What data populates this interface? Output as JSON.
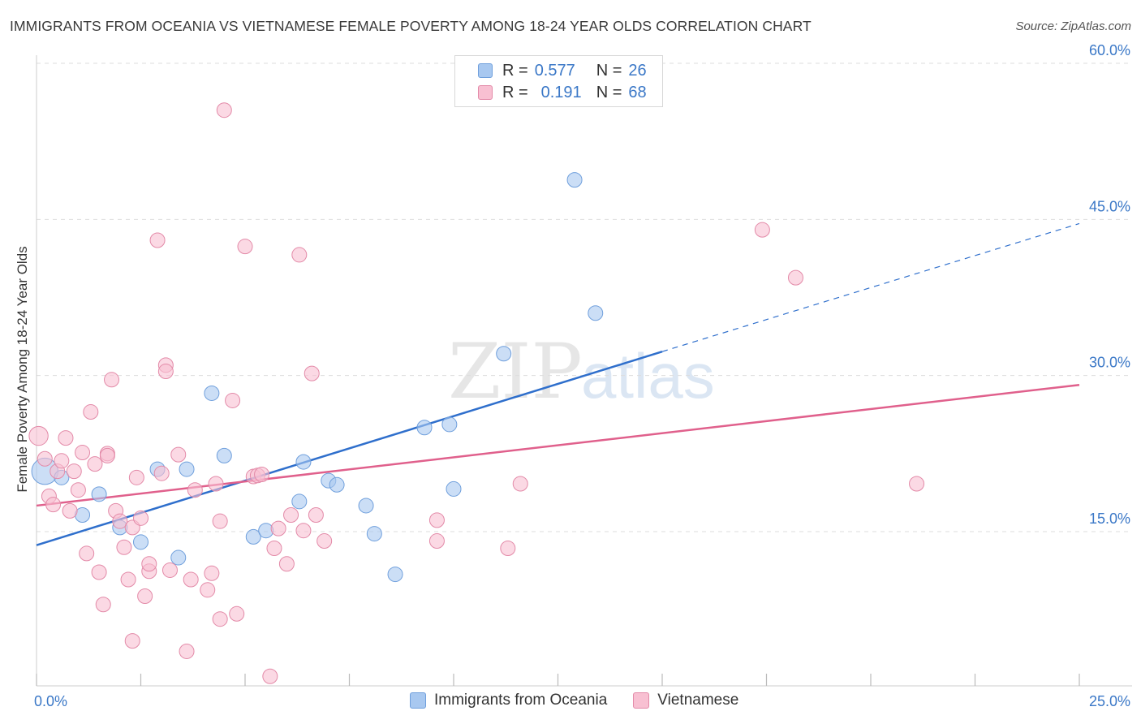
{
  "header": {
    "title": "IMMIGRANTS FROM OCEANIA VS VIETNAMESE FEMALE POVERTY AMONG 18-24 YEAR OLDS CORRELATION CHART",
    "source": "Source: ZipAtlas.com"
  },
  "watermark": {
    "zip": "ZIP",
    "atlas": "atlas"
  },
  "legend": {
    "r_label": "R =",
    "n_label": "N =",
    "rows": [
      {
        "r": "0.577",
        "n": "26",
        "color": "#a8c8f0",
        "border": "#6f9fdc"
      },
      {
        "r": "0.191",
        "n": "68",
        "color": "#f8c0d2",
        "border": "#e38aa8"
      }
    ]
  },
  "chart_data": {
    "type": "scatter",
    "title": "IMMIGRANTS FROM OCEANIA VS VIETNAMESE FEMALE POVERTY AMONG 18-24 YEAR OLDS CORRELATION CHART",
    "xlabel": "",
    "ylabel": "Female Poverty Among 18-24 Year Olds",
    "xlim": [
      0,
      25
    ],
    "ylim": [
      0,
      61
    ],
    "x_tick_labels": [
      "0.0%",
      "25.0%"
    ],
    "y_ticks": [
      15,
      30,
      45,
      60
    ],
    "y_tick_labels": [
      "15.0%",
      "30.0%",
      "45.0%",
      "60.0%"
    ],
    "grid": true,
    "series": [
      {
        "name": "Immigrants from Oceania",
        "color": "#a8c8f0",
        "stroke": "#6f9fdc",
        "line_color": "#2f6fcc",
        "trend": {
          "x0": 0,
          "y0": 13.7,
          "x1": 15,
          "y1": 32.3,
          "dash_to_x": 25,
          "dash_to_y": 44.6
        },
        "points": [
          [
            0.2,
            20.8
          ],
          [
            0.6,
            20.2
          ],
          [
            1.1,
            16.6
          ],
          [
            1.5,
            18.6
          ],
          [
            2.0,
            15.4
          ],
          [
            2.5,
            14.0
          ],
          [
            2.9,
            21.0
          ],
          [
            3.4,
            12.5
          ],
          [
            3.6,
            21.0
          ],
          [
            4.2,
            28.3
          ],
          [
            4.5,
            22.3
          ],
          [
            5.2,
            14.5
          ],
          [
            5.5,
            15.1
          ],
          [
            6.3,
            17.9
          ],
          [
            6.4,
            21.7
          ],
          [
            7.0,
            19.9
          ],
          [
            7.2,
            19.5
          ],
          [
            7.9,
            17.5
          ],
          [
            8.1,
            14.8
          ],
          [
            8.6,
            10.9
          ],
          [
            9.3,
            25.0
          ],
          [
            9.9,
            25.3
          ],
          [
            10.0,
            19.1
          ],
          [
            11.2,
            32.1
          ],
          [
            12.9,
            48.8
          ],
          [
            13.4,
            36.0
          ]
        ],
        "sizes": [
          1.8,
          1,
          1,
          1,
          1,
          1,
          1,
          1,
          1,
          1,
          1,
          1,
          1,
          1,
          1,
          1,
          1,
          1,
          1,
          1,
          1,
          1,
          1,
          1,
          1,
          1
        ]
      },
      {
        "name": "Vietnamese",
        "color": "#f8c0d2",
        "stroke": "#e38aa8",
        "line_color": "#e0608c",
        "trend": {
          "x0": 0,
          "y0": 17.5,
          "x1": 25,
          "y1": 29.1
        },
        "points": [
          [
            0.05,
            24.2
          ],
          [
            0.2,
            22.0
          ],
          [
            0.3,
            18.4
          ],
          [
            0.4,
            17.6
          ],
          [
            0.5,
            20.8
          ],
          [
            0.6,
            21.8
          ],
          [
            0.7,
            24.0
          ],
          [
            0.8,
            17.0
          ],
          [
            0.9,
            20.8
          ],
          [
            1.0,
            19.0
          ],
          [
            1.1,
            22.6
          ],
          [
            1.2,
            12.9
          ],
          [
            1.3,
            26.5
          ],
          [
            1.4,
            21.5
          ],
          [
            1.5,
            11.1
          ],
          [
            1.6,
            8.0
          ],
          [
            1.7,
            22.5
          ],
          [
            1.7,
            22.3
          ],
          [
            1.8,
            29.6
          ],
          [
            1.9,
            17.0
          ],
          [
            2.0,
            16.0
          ],
          [
            2.1,
            13.5
          ],
          [
            2.2,
            10.4
          ],
          [
            2.3,
            15.4
          ],
          [
            2.3,
            4.5
          ],
          [
            2.4,
            20.2
          ],
          [
            2.5,
            16.3
          ],
          [
            2.6,
            8.8
          ],
          [
            2.7,
            11.2
          ],
          [
            2.7,
            11.9
          ],
          [
            2.9,
            43.0
          ],
          [
            3.0,
            20.6
          ],
          [
            3.1,
            31.0
          ],
          [
            3.1,
            30.4
          ],
          [
            3.2,
            11.3
          ],
          [
            3.4,
            22.4
          ],
          [
            3.6,
            3.5
          ],
          [
            3.7,
            10.4
          ],
          [
            3.8,
            19.0
          ],
          [
            4.1,
            9.4
          ],
          [
            4.2,
            11.0
          ],
          [
            4.3,
            19.6
          ],
          [
            4.4,
            16.0
          ],
          [
            4.4,
            6.6
          ],
          [
            4.5,
            55.5
          ],
          [
            4.7,
            27.6
          ],
          [
            4.8,
            7.1
          ],
          [
            5.0,
            42.4
          ],
          [
            5.2,
            20.3
          ],
          [
            5.3,
            20.4
          ],
          [
            5.4,
            20.5
          ],
          [
            5.6,
            1.1
          ],
          [
            5.7,
            13.4
          ],
          [
            5.8,
            15.3
          ],
          [
            6.0,
            11.9
          ],
          [
            6.1,
            16.6
          ],
          [
            6.3,
            41.6
          ],
          [
            6.4,
            15.1
          ],
          [
            6.6,
            30.2
          ],
          [
            6.7,
            16.6
          ],
          [
            6.9,
            14.1
          ],
          [
            9.6,
            14.1
          ],
          [
            9.6,
            16.1
          ],
          [
            11.3,
            13.4
          ],
          [
            11.6,
            19.6
          ],
          [
            17.4,
            44.0
          ],
          [
            18.2,
            39.4
          ],
          [
            21.1,
            19.6
          ]
        ],
        "sizes": [
          1.3,
          1,
          1,
          1,
          1,
          1,
          1,
          1,
          1,
          1,
          1,
          1,
          1,
          1,
          1,
          1,
          1,
          1,
          1,
          1,
          1,
          1,
          1,
          1,
          1,
          1,
          1,
          1,
          1,
          1,
          1,
          1,
          1,
          1,
          1,
          1,
          1,
          1,
          1,
          1,
          1,
          1,
          1,
          1,
          1,
          1,
          1,
          1,
          1,
          1,
          1,
          1,
          1,
          1,
          1,
          1,
          1,
          1,
          1,
          1,
          1,
          1,
          1,
          1,
          1,
          1,
          1,
          1
        ]
      }
    ]
  }
}
